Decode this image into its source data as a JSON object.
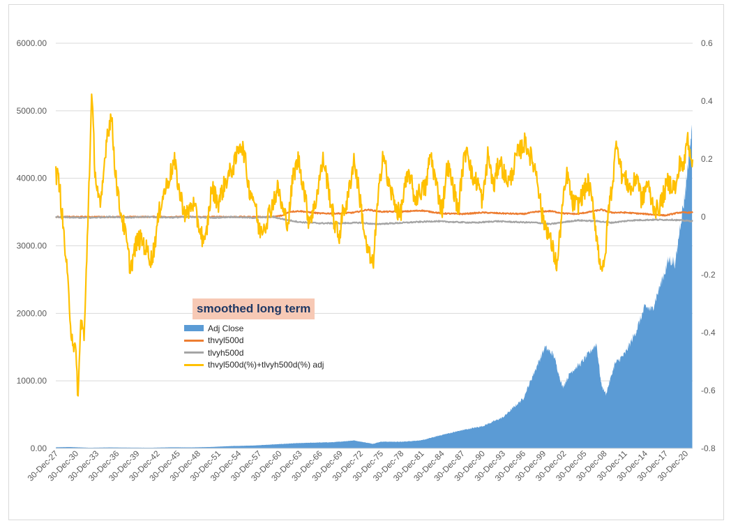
{
  "chart_data": {
    "type": "area+line",
    "annotation": "smoothed long term",
    "legend": {
      "placement": "center-left",
      "entries": [
        {
          "name": "Adj Close",
          "color": "#5b9bd5",
          "kind": "area"
        },
        {
          "name": "thvyl500d",
          "color": "#ed7d31",
          "kind": "line"
        },
        {
          "name": "tlvyh500d",
          "color": "#a5a5a5",
          "kind": "line"
        },
        {
          "name": "thvyl500d(%)+tlvyh500d(%) adj",
          "color": "#ffc000",
          "kind": "line"
        }
      ]
    },
    "y_left": {
      "range": [
        0,
        6000
      ],
      "ticks": [
        "0.00",
        "1000.00",
        "2000.00",
        "3000.00",
        "4000.00",
        "5000.00",
        "6000.00"
      ]
    },
    "y_right": {
      "range": [
        -0.8,
        0.6
      ],
      "ticks": [
        "-0.8",
        "-0.6",
        "-0.4",
        "-0.2",
        "0",
        "0.2",
        "0.4",
        "0.6"
      ]
    },
    "x_axis": {
      "range_years": [
        1927.99,
        2022.0
      ],
      "tick_labels": [
        "30-Dec-27",
        "30-Dec-30",
        "30-Dec-33",
        "30-Dec-36",
        "30-Dec-39",
        "30-Dec-42",
        "30-Dec-45",
        "30-Dec-48",
        "30-Dec-51",
        "30-Dec-54",
        "30-Dec-57",
        "30-Dec-60",
        "30-Dec-63",
        "30-Dec-66",
        "30-Dec-69",
        "30-Dec-72",
        "30-Dec-75",
        "30-Dec-78",
        "30-Dec-81",
        "30-Dec-84",
        "30-Dec-87",
        "30-Dec-90",
        "30-Dec-93",
        "30-Dec-96",
        "30-Dec-99",
        "30-Dec-02",
        "30-Dec-05",
        "30-Dec-08",
        "30-Dec-11",
        "30-Dec-14",
        "30-Dec-17",
        "30-Dec-20"
      ]
    },
    "grid": "horizontal",
    "series": [
      {
        "name": "Adj Close",
        "axis": "left",
        "type": "area",
        "x": [
          1928,
          1930,
          1933,
          1936,
          1939,
          1942,
          1945,
          1948,
          1951,
          1954,
          1957,
          1960,
          1963,
          1966,
          1969,
          1972,
          1974.8,
          1976,
          1979,
          1982,
          1985,
          1988,
          1991,
          1994,
          1997,
          1998.5,
          2000.2,
          2001.5,
          2002.8,
          2004,
          2005.5,
          2007.8,
          2008.5,
          2009.2,
          2010.5,
          2012,
          2013.5,
          2015,
          2016,
          2017.5,
          2018.5,
          2019.5,
          2020.2,
          2020.8,
          2021.5,
          2021.95
        ],
        "y": [
          17,
          21,
          10,
          15,
          12,
          10,
          17,
          15,
          22,
          35,
          42,
          58,
          75,
          85,
          92,
          118,
          68,
          100,
          98,
          120,
          200,
          270,
          330,
          460,
          740,
          1100,
          1500,
          1380,
          900,
          1130,
          1260,
          1550,
          950,
          800,
          1250,
          1400,
          1700,
          2100,
          2050,
          2500,
          2800,
          2750,
          3350,
          3700,
          4400,
          4750
        ]
      },
      {
        "name": "thvyl500d",
        "axis": "right",
        "type": "line",
        "x": [
          1928,
          1960,
          1961.5,
          1962.5,
          1964,
          1967,
          1970,
          1972,
          1974,
          1976,
          1979,
          1982,
          1985,
          1988,
          1991,
          1994,
          1997,
          1999,
          2001,
          2003,
          2005,
          2007,
          2008.5,
          2010,
          2012,
          2015,
          2018,
          2020,
          2022
        ],
        "y": [
          0,
          0,
          0.005,
          0.018,
          0.02,
          0.012,
          0.012,
          0.015,
          0.025,
          0.018,
          0.018,
          0.022,
          0.012,
          0.01,
          0.015,
          0.012,
          0.01,
          0.018,
          0.02,
          0.012,
          0.01,
          0.018,
          0.025,
          0.015,
          0.015,
          0.01,
          0.005,
          0.015,
          0.015
        ]
      },
      {
        "name": "tlvyh500d",
        "axis": "right",
        "type": "line",
        "x": [
          1928,
          1930,
          1933,
          1936,
          1939,
          1942,
          1945,
          1948,
          1951,
          1954,
          1957,
          1960,
          1962,
          1964,
          1967,
          1970,
          1973,
          1975,
          1978,
          1981,
          1984,
          1987,
          1990,
          1993,
          1996,
          1999,
          2001,
          2003,
          2005,
          2008,
          2010,
          2013,
          2016,
          2019,
          2022
        ],
        "y": [
          0,
          -0.002,
          -0.003,
          0,
          -0.002,
          0,
          -0.002,
          0,
          -0.003,
          0,
          -0.003,
          0,
          -0.01,
          -0.018,
          -0.022,
          -0.022,
          -0.02,
          -0.025,
          -0.022,
          -0.018,
          -0.015,
          -0.018,
          -0.02,
          -0.015,
          -0.018,
          -0.02,
          -0.025,
          -0.018,
          -0.012,
          -0.015,
          -0.02,
          -0.012,
          -0.01,
          -0.01,
          -0.015
        ]
      },
      {
        "name": "thvyl500d(%)+tlvyh500d(%) adj",
        "axis": "right",
        "type": "line",
        "x": [
          1928,
          1928.5,
          1929.5,
          1930.3,
          1930.9,
          1931.3,
          1931.7,
          1932.2,
          1932.8,
          1933.3,
          1933.8,
          1934.6,
          1935.5,
          1936.2,
          1936.7,
          1937.3,
          1938.2,
          1939,
          1940,
          1940.7,
          1941.5,
          1942.2,
          1943.5,
          1944.5,
          1945.5,
          1946.3,
          1947.2,
          1948.2,
          1949,
          1950,
          1951,
          1952,
          1953,
          1954.5,
          1955.2,
          1955.8,
          1956.5,
          1957.3,
          1958,
          1959,
          1960,
          1960.8,
          1961.5,
          1962.3,
          1963,
          1963.8,
          1964.6,
          1965.3,
          1966.2,
          1966.8,
          1967.5,
          1968.3,
          1969.1,
          1969.8,
          1970.4,
          1971,
          1972,
          1972.8,
          1973.8,
          1974.8,
          1975.5,
          1976.3,
          1977,
          1978,
          1978.8,
          1979.5,
          1980.2,
          1981,
          1981.8,
          1982.6,
          1983.3,
          1984,
          1985,
          1985.8,
          1986.7,
          1987.4,
          1988,
          1988.7,
          1989.5,
          1990.3,
          1991,
          1991.8,
          1992.6,
          1993.5,
          1994.3,
          1995,
          1996,
          1997.3,
          1998.2,
          1999,
          1999.8,
          2000.5,
          2001.2,
          2002,
          2002.7,
          2003.5,
          2004.2,
          2005,
          2005.8,
          2006.6,
          2007.4,
          2008.2,
          2008.9,
          2009.6,
          2010.2,
          2010.8,
          2011.5,
          2012.3,
          2013,
          2013.8,
          2014.5,
          2015.3,
          2016,
          2016.8,
          2017.5,
          2018.3,
          2019,
          2019.6,
          2020.2,
          2020.7,
          2021.2,
          2021.7,
          2022
        ],
        "y": [
          0.15,
          0.12,
          -0.15,
          -0.4,
          -0.47,
          -0.62,
          -0.35,
          -0.42,
          0.05,
          0.42,
          0.15,
          0.02,
          0.28,
          0.35,
          0.18,
          0.05,
          -0.05,
          -0.18,
          -0.08,
          -0.08,
          -0.12,
          -0.15,
          0.05,
          0.12,
          0.19,
          0.08,
          0,
          0.05,
          -0.02,
          -0.1,
          0.1,
          0.05,
          0.12,
          0.19,
          0.26,
          0.22,
          0.1,
          0.06,
          -0.05,
          -0.02,
          0.05,
          0.1,
          0.02,
          -0.02,
          0.14,
          0.2,
          0.1,
          -0.01,
          0.03,
          0.12,
          0.2,
          0.09,
          -0.02,
          -0.07,
          0.02,
          0.05,
          0.2,
          0.08,
          -0.1,
          -0.17,
          0.04,
          0.23,
          0.12,
          0.05,
          0,
          0.1,
          0.15,
          0.06,
          0.09,
          0.1,
          0.22,
          0.13,
          0.02,
          0.18,
          0.1,
          0.02,
          0.16,
          0.25,
          0.13,
          0.12,
          0.05,
          0.22,
          0.1,
          0.2,
          0.14,
          0.12,
          0.21,
          0.26,
          0.2,
          0.15,
          0,
          -0.04,
          -0.1,
          -0.17,
          0.02,
          0.15,
          0.05,
          0.04,
          0.08,
          0.12,
          0.02,
          -0.14,
          -0.19,
          0.03,
          0.12,
          0.27,
          0.15,
          0.12,
          0.09,
          0.15,
          0.05,
          0.12,
          0.05,
          0.02,
          0.06,
          0.12,
          0.11,
          0.1,
          0.2,
          0.16,
          0.28,
          0.22,
          0.2
        ]
      }
    ]
  }
}
